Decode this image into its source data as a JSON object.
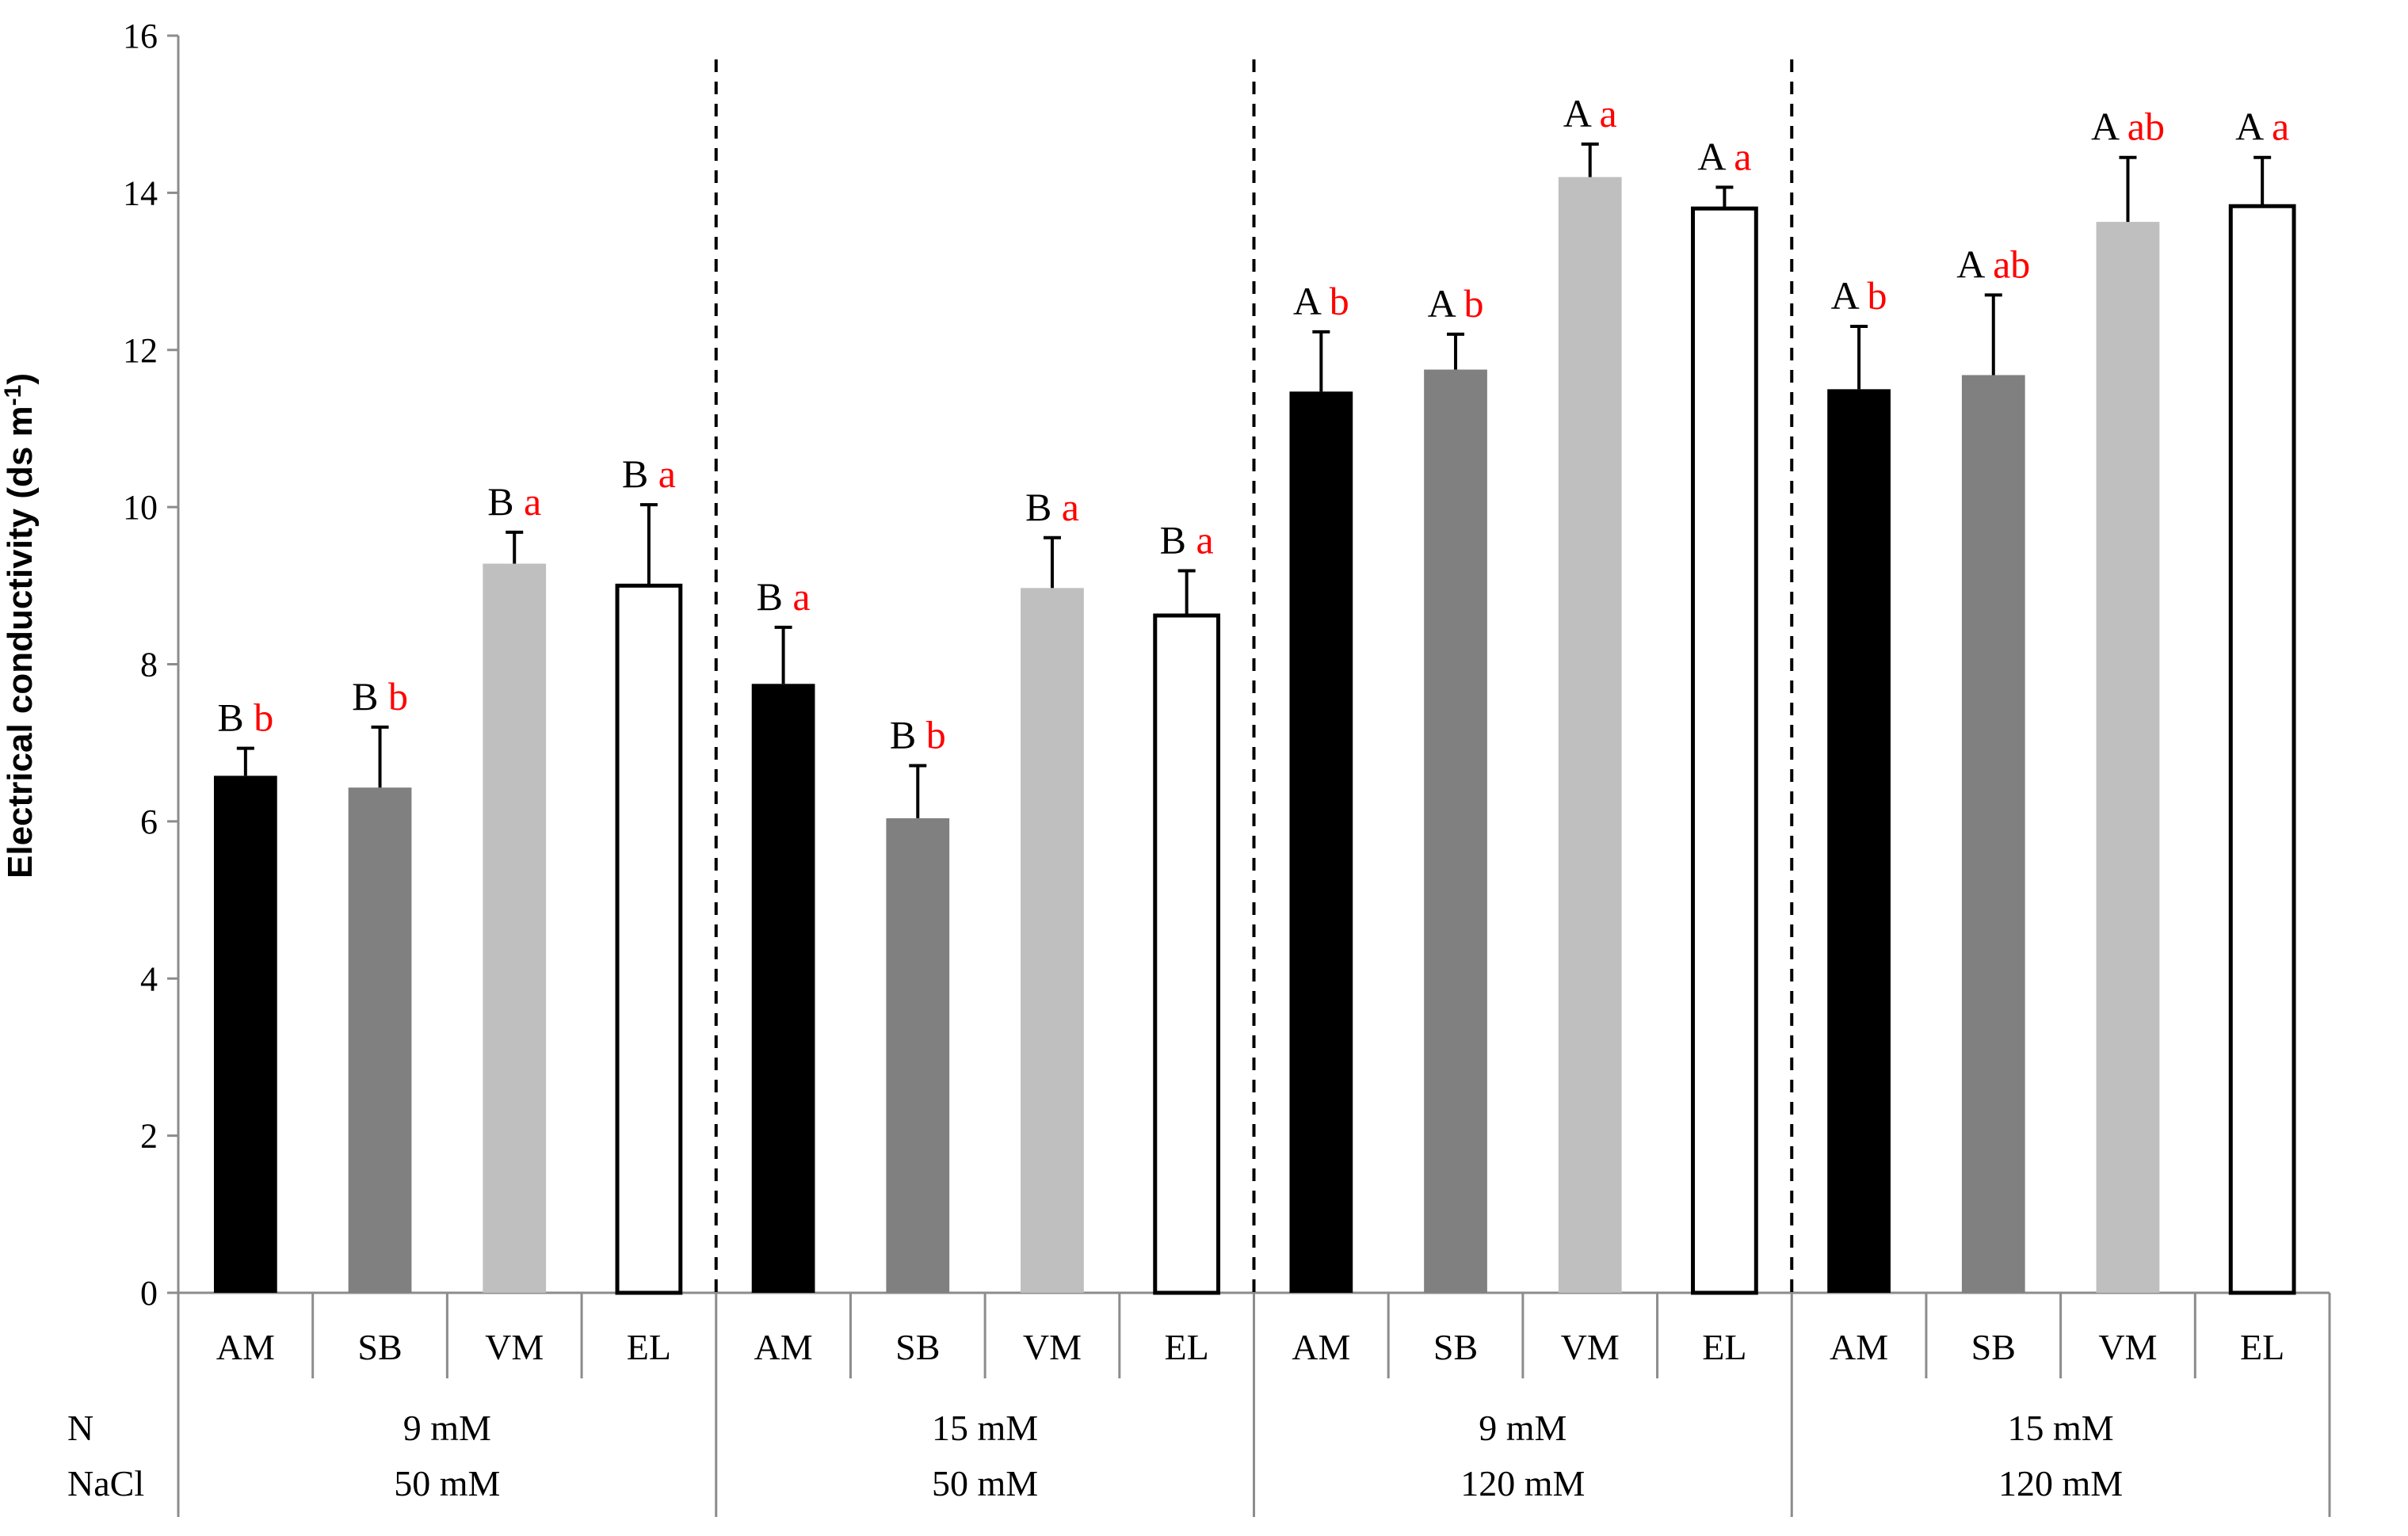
{
  "chart_data": {
    "type": "bar",
    "ylabel": "Electrical conductivity (ds m",
    "ylabel_sup": "-1",
    "ylabel_close": ")",
    "ylim": [
      0,
      16
    ],
    "yticks": [
      0,
      2,
      4,
      6,
      8,
      10,
      12,
      14,
      16
    ],
    "grid": false,
    "categories": [
      "AM",
      "SB",
      "VM",
      "EL"
    ],
    "series_colors": {
      "AM": "#000000",
      "SB": "#808080",
      "VM": "#bfbfbf",
      "EL": "#ffffff"
    },
    "letter_colors": {
      "uppercase": "#000000",
      "lowercase": "#ff0000"
    },
    "row_labels": {
      "n": "N",
      "nacl": "NaCl"
    },
    "groups": [
      {
        "n": "9 mM",
        "nacl": "50 mM",
        "bars": [
          {
            "category": "AM",
            "value": 6.58,
            "error": 0.35,
            "upper": "B",
            "lower": "b"
          },
          {
            "category": "SB",
            "value": 6.43,
            "error": 0.77,
            "upper": "B",
            "lower": "b"
          },
          {
            "category": "VM",
            "value": 9.28,
            "error": 0.4,
            "upper": "B",
            "lower": "a"
          },
          {
            "category": "EL",
            "value": 9.0,
            "error": 1.03,
            "upper": "B",
            "lower": "a"
          }
        ]
      },
      {
        "n": "15 mM",
        "nacl": "50 mM",
        "bars": [
          {
            "category": "AM",
            "value": 7.75,
            "error": 0.72,
            "upper": "B",
            "lower": "a"
          },
          {
            "category": "SB",
            "value": 6.04,
            "error": 0.67,
            "upper": "B",
            "lower": "b"
          },
          {
            "category": "VM",
            "value": 8.97,
            "error": 0.64,
            "upper": "B",
            "lower": "a"
          },
          {
            "category": "EL",
            "value": 8.62,
            "error": 0.57,
            "upper": "B",
            "lower": "a"
          }
        ]
      },
      {
        "n": "9 mM",
        "nacl": "120 mM",
        "bars": [
          {
            "category": "AM",
            "value": 11.47,
            "error": 0.76,
            "upper": "A",
            "lower": "b"
          },
          {
            "category": "SB",
            "value": 11.75,
            "error": 0.45,
            "upper": "A",
            "lower": "b"
          },
          {
            "category": "VM",
            "value": 14.2,
            "error": 0.42,
            "upper": "A",
            "lower": "a"
          },
          {
            "category": "EL",
            "value": 13.8,
            "error": 0.27,
            "upper": "A",
            "lower": "a"
          }
        ]
      },
      {
        "n": "15 mM",
        "nacl": "120 mM",
        "bars": [
          {
            "category": "AM",
            "value": 11.5,
            "error": 0.8,
            "upper": "A",
            "lower": "b"
          },
          {
            "category": "SB",
            "value": 11.68,
            "error": 1.02,
            "upper": "A",
            "lower": "ab"
          },
          {
            "category": "VM",
            "value": 13.63,
            "error": 0.82,
            "upper": "A",
            "lower": "ab"
          },
          {
            "category": "EL",
            "value": 13.83,
            "error": 0.62,
            "upper": "A",
            "lower": "a"
          }
        ]
      }
    ]
  }
}
